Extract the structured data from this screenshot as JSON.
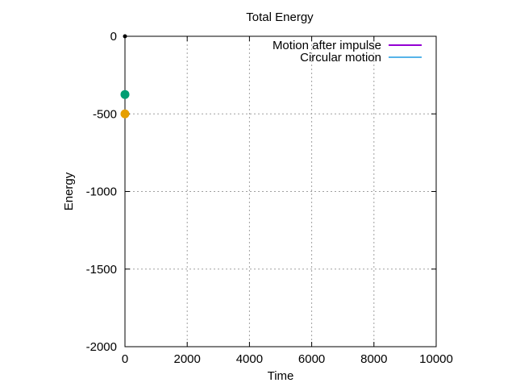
{
  "chart_data": {
    "type": "line",
    "title": "Total Energy",
    "xlabel": "Time",
    "ylabel": "Energy",
    "xlim": [
      0,
      10000
    ],
    "ylim": [
      -2000,
      0
    ],
    "xticks": [
      0,
      2000,
      4000,
      6000,
      8000,
      10000
    ],
    "yticks": [
      0,
      -500,
      -1000,
      -1500,
      -2000
    ],
    "grid": true,
    "legend_position": "top-right",
    "series": [
      {
        "name": "Motion after impulse",
        "color": "#9400d3",
        "points": [
          [
            0,
            -375
          ],
          [
            10,
            -375
          ],
          [
            20,
            -375
          ]
        ]
      },
      {
        "name": "Circular motion",
        "color": "#56b4e9",
        "points": [
          [
            0,
            -500
          ],
          [
            10,
            -500
          ]
        ]
      }
    ],
    "markers": [
      {
        "x": 0,
        "y": -375,
        "color": "#009e73"
      },
      {
        "x": 0,
        "y": -500,
        "color": "#e69f00"
      },
      {
        "x": 0,
        "y": 0,
        "color": "#000000"
      }
    ]
  }
}
